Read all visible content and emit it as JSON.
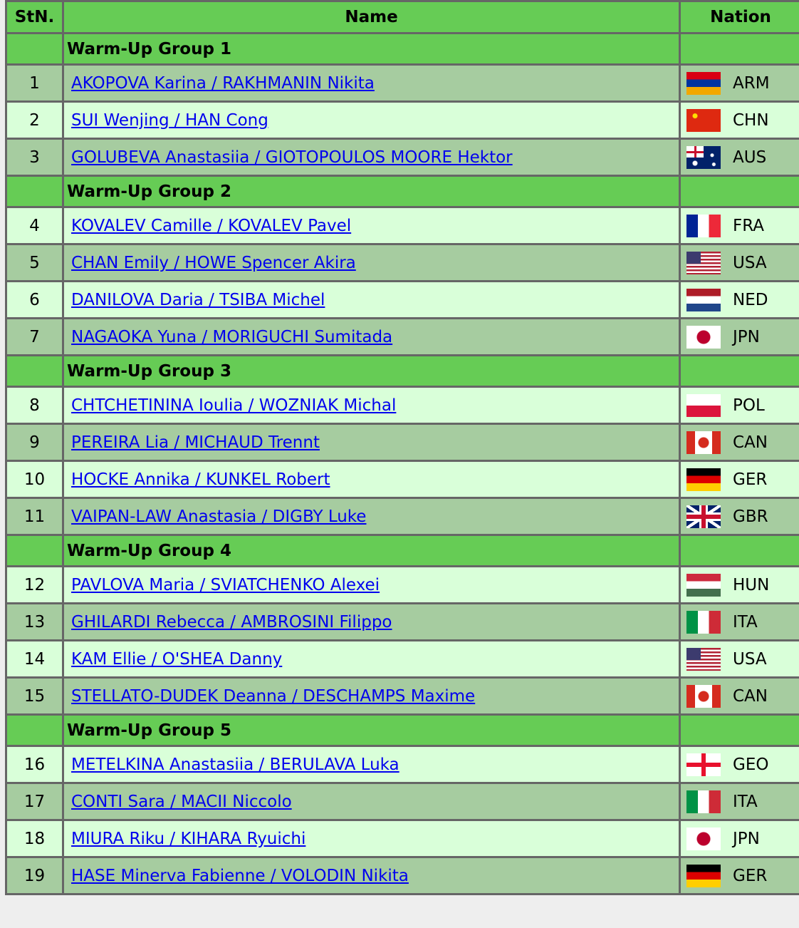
{
  "headers": {
    "stn": "StN.",
    "name": "Name",
    "nation": "Nation"
  },
  "colors": {
    "header": "#66cc55",
    "row_odd": "#a6cca0",
    "row_even": "#d9ffd9",
    "link": "#0000ee"
  },
  "groups": [
    {
      "label": "Warm-Up Group 1",
      "rows": [
        {
          "stn": "1",
          "name": "AKOPOVA Karina / RAKHMANIN Nikita",
          "nation": "ARM",
          "flag": "ARM"
        },
        {
          "stn": "2",
          "name": "SUI Wenjing / HAN Cong",
          "nation": "CHN",
          "flag": "CHN"
        },
        {
          "stn": "3",
          "name": "GOLUBEVA Anastasiia / GIOTOPOULOS MOORE Hektor",
          "nation": "AUS",
          "flag": "AUS"
        }
      ]
    },
    {
      "label": "Warm-Up Group 2",
      "rows": [
        {
          "stn": "4",
          "name": "KOVALEV Camille / KOVALEV Pavel",
          "nation": "FRA",
          "flag": "FRA"
        },
        {
          "stn": "5",
          "name": "CHAN Emily / HOWE Spencer Akira",
          "nation": "USA",
          "flag": "USA"
        },
        {
          "stn": "6",
          "name": "DANILOVA Daria / TSIBA Michel",
          "nation": "NED",
          "flag": "NED"
        },
        {
          "stn": "7",
          "name": "NAGAOKA Yuna / MORIGUCHI Sumitada",
          "nation": "JPN",
          "flag": "JPN"
        }
      ]
    },
    {
      "label": "Warm-Up Group 3",
      "rows": [
        {
          "stn": "8",
          "name": "CHTCHETININA Ioulia / WOZNIAK Michal",
          "nation": "POL",
          "flag": "POL"
        },
        {
          "stn": "9",
          "name": "PEREIRA Lia / MICHAUD Trennt",
          "nation": "CAN",
          "flag": "CAN"
        },
        {
          "stn": "10",
          "name": "HOCKE Annika / KUNKEL Robert",
          "nation": "GER",
          "flag": "GER"
        },
        {
          "stn": "11",
          "name": "VAIPAN-LAW Anastasia / DIGBY Luke",
          "nation": "GBR",
          "flag": "GBR"
        }
      ]
    },
    {
      "label": "Warm-Up Group 4",
      "rows": [
        {
          "stn": "12",
          "name": "PAVLOVA Maria / SVIATCHENKO Alexei",
          "nation": "HUN",
          "flag": "HUN"
        },
        {
          "stn": "13",
          "name": "GHILARDI Rebecca / AMBROSINI Filippo",
          "nation": "ITA",
          "flag": "ITA"
        },
        {
          "stn": "14",
          "name": "KAM Ellie / O'SHEA Danny",
          "nation": "USA",
          "flag": "USA"
        },
        {
          "stn": "15",
          "name": "STELLATO-DUDEK Deanna / DESCHAMPS Maxime",
          "nation": "CAN",
          "flag": "CAN"
        }
      ]
    },
    {
      "label": "Warm-Up Group 5",
      "rows": [
        {
          "stn": "16",
          "name": "METELKINA Anastasiia / BERULAVA Luka",
          "nation": "GEO",
          "flag": "GEO"
        },
        {
          "stn": "17",
          "name": "CONTI Sara / MACII Niccolo",
          "nation": "ITA",
          "flag": "ITA"
        },
        {
          "stn": "18",
          "name": "MIURA Riku / KIHARA Ryuichi",
          "nation": "JPN",
          "flag": "JPN"
        },
        {
          "stn": "19",
          "name": "HASE Minerva Fabienne / VOLODIN Nikita",
          "nation": "GER",
          "flag": "GER"
        }
      ]
    }
  ]
}
